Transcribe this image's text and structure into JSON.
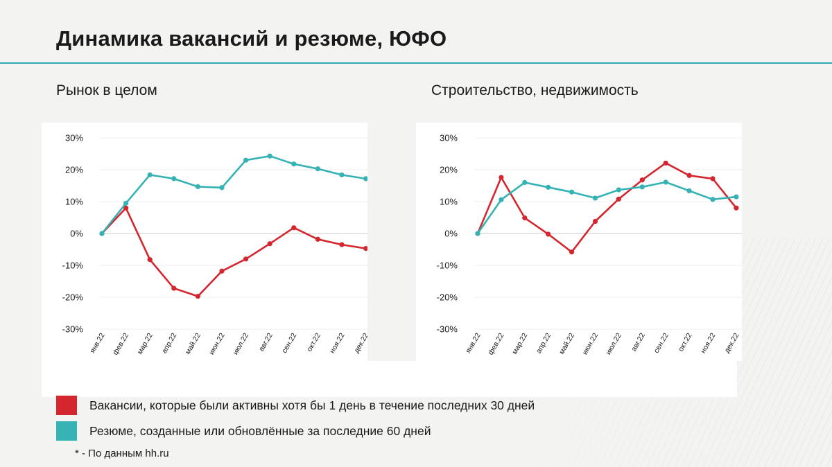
{
  "page": {
    "title": "Динамика вакансий и резюме, ЮФО",
    "footnote": "* - По данным hh.ru"
  },
  "legend": [
    {
      "label": "Вакансии, которые были активны хотя бы 1 день в течение последних 30 дней",
      "color": "#d4262f"
    },
    {
      "label": "Резюме, созданные или обновлённые за последние 60 дней",
      "color": "#35b2b4"
    }
  ],
  "chart_data": [
    {
      "type": "line",
      "title": "Рынок в целом",
      "categories": [
        "янв.22",
        "фев.22",
        "мар.22",
        "апр.22",
        "май.22",
        "июн.22",
        "июл.22",
        "авг.22",
        "сен.22",
        "окт.22",
        "ноя.22",
        "дек.22"
      ],
      "ylim": [
        -30,
        30
      ],
      "yticks": [
        30,
        20,
        10,
        0,
        -10,
        -20,
        -30
      ],
      "ytick_labels": [
        "30%",
        "20%",
        "10%",
        "0%",
        "-10%",
        "-20%",
        "-30%"
      ],
      "grid": true,
      "series": [
        {
          "key": "vacancies",
          "color": "#d4262f",
          "values": [
            0,
            8,
            -8.2,
            -17.2,
            -19.7,
            -11.8,
            -8,
            -3.2,
            1.8,
            -1.8,
            -3.5,
            -4.7
          ]
        },
        {
          "key": "resumes",
          "color": "#35b2b4",
          "values": [
            0,
            9.5,
            18.4,
            17.2,
            14.7,
            14.4,
            23,
            24.3,
            21.8,
            20.3,
            18.4,
            17.2
          ]
        }
      ]
    },
    {
      "type": "line",
      "title": "Строительство, недвижимость",
      "categories": [
        "янв.22",
        "фев.22",
        "мар.22",
        "апр.22",
        "май.22",
        "июн.22",
        "июл.22",
        "авг.22",
        "сен.22",
        "окт.22",
        "ноя.22",
        "дек.22"
      ],
      "ylim": [
        -30,
        30
      ],
      "yticks": [
        30,
        20,
        10,
        0,
        -10,
        -20,
        -30
      ],
      "ytick_labels": [
        "30%",
        "20%",
        "10%",
        "0%",
        "-10%",
        "-20%",
        "-30%"
      ],
      "grid": true,
      "series": [
        {
          "key": "vacancies",
          "color": "#d4262f",
          "values": [
            0,
            17.6,
            4.9,
            -0.2,
            -5.8,
            3.8,
            10.8,
            16.8,
            22.1,
            18.2,
            17.2,
            8
          ]
        },
        {
          "key": "resumes",
          "color": "#35b2b4",
          "values": [
            0,
            10.6,
            16,
            14.5,
            13,
            11.1,
            13.7,
            14.6,
            16.1,
            13.4,
            10.7,
            11.5
          ]
        }
      ]
    }
  ]
}
